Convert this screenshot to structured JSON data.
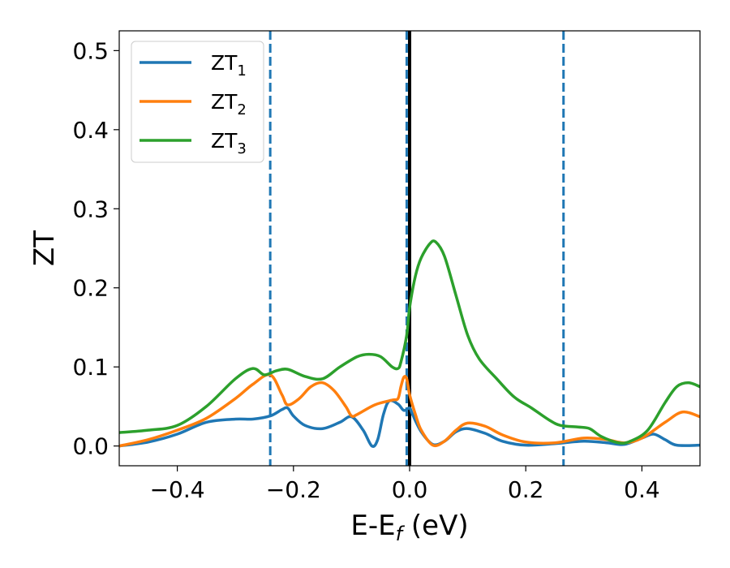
{
  "chart_data": {
    "type": "line",
    "xlabel": "E-E",
    "xlabel_sub": "f",
    "xlabel_unit": " (eV)",
    "ylabel": "ZT",
    "xlim": [
      -0.5,
      0.5
    ],
    "ylim": [
      -0.025,
      0.525
    ],
    "x_ticks": [
      -0.4,
      -0.2,
      0.0,
      0.2,
      0.4
    ],
    "x_tick_labels": [
      "−0.4",
      "−0.2",
      "0.0",
      "0.2",
      "0.4"
    ],
    "y_ticks": [
      0.0,
      0.1,
      0.2,
      0.3,
      0.4,
      0.5
    ],
    "y_tick_labels": [
      "0.0",
      "0.1",
      "0.2",
      "0.3",
      "0.4",
      "0.5"
    ],
    "grid": false,
    "legend_position": "top-left",
    "vertical_lines": [
      {
        "x": -0.24,
        "style": "dashed",
        "color": "#1f77b4"
      },
      {
        "x": -0.005,
        "style": "dashed",
        "color": "#1f77b4"
      },
      {
        "x": 0.265,
        "style": "dashed",
        "color": "#1f77b4"
      },
      {
        "x": 0.0,
        "style": "solid",
        "color": "#000000"
      }
    ],
    "series": [
      {
        "name": "ZT",
        "sub": "1",
        "color": "#1f77b4",
        "points": [
          [
            -0.5,
            0.0
          ],
          [
            -0.45,
            0.005
          ],
          [
            -0.4,
            0.015
          ],
          [
            -0.35,
            0.03
          ],
          [
            -0.3,
            0.034
          ],
          [
            -0.27,
            0.034
          ],
          [
            -0.24,
            0.038
          ],
          [
            -0.22,
            0.046
          ],
          [
            -0.21,
            0.048
          ],
          [
            -0.2,
            0.038
          ],
          [
            -0.18,
            0.026
          ],
          [
            -0.15,
            0.022
          ],
          [
            -0.12,
            0.03
          ],
          [
            -0.1,
            0.037
          ],
          [
            -0.08,
            0.02
          ],
          [
            -0.065,
            0.0
          ],
          [
            -0.055,
            0.008
          ],
          [
            -0.045,
            0.04
          ],
          [
            -0.035,
            0.057
          ],
          [
            -0.02,
            0.053
          ],
          [
            -0.01,
            0.045
          ],
          [
            0.0,
            0.048
          ],
          [
            0.005,
            0.04
          ],
          [
            0.02,
            0.018
          ],
          [
            0.04,
            0.002
          ],
          [
            0.06,
            0.006
          ],
          [
            0.08,
            0.018
          ],
          [
            0.1,
            0.022
          ],
          [
            0.13,
            0.016
          ],
          [
            0.16,
            0.006
          ],
          [
            0.2,
            0.001
          ],
          [
            0.25,
            0.003
          ],
          [
            0.3,
            0.006
          ],
          [
            0.34,
            0.004
          ],
          [
            0.37,
            0.002
          ],
          [
            0.4,
            0.01
          ],
          [
            0.42,
            0.015
          ],
          [
            0.44,
            0.008
          ],
          [
            0.46,
            0.001
          ],
          [
            0.5,
            0.001
          ]
        ]
      },
      {
        "name": "ZT",
        "sub": "2",
        "color": "#ff7f0e",
        "points": [
          [
            -0.5,
            0.0
          ],
          [
            -0.45,
            0.008
          ],
          [
            -0.4,
            0.02
          ],
          [
            -0.35,
            0.035
          ],
          [
            -0.3,
            0.06
          ],
          [
            -0.27,
            0.078
          ],
          [
            -0.24,
            0.09
          ],
          [
            -0.22,
            0.065
          ],
          [
            -0.21,
            0.052
          ],
          [
            -0.19,
            0.06
          ],
          [
            -0.17,
            0.075
          ],
          [
            -0.15,
            0.08
          ],
          [
            -0.13,
            0.07
          ],
          [
            -0.11,
            0.05
          ],
          [
            -0.1,
            0.038
          ],
          [
            -0.09,
            0.04
          ],
          [
            -0.06,
            0.052
          ],
          [
            -0.03,
            0.058
          ],
          [
            -0.02,
            0.06
          ],
          [
            -0.015,
            0.075
          ],
          [
            -0.01,
            0.087
          ],
          [
            -0.005,
            0.085
          ],
          [
            0.0,
            0.065
          ],
          [
            0.01,
            0.04
          ],
          [
            0.02,
            0.02
          ],
          [
            0.04,
            0.001
          ],
          [
            0.06,
            0.006
          ],
          [
            0.08,
            0.02
          ],
          [
            0.1,
            0.029
          ],
          [
            0.13,
            0.025
          ],
          [
            0.16,
            0.014
          ],
          [
            0.2,
            0.005
          ],
          [
            0.25,
            0.004
          ],
          [
            0.3,
            0.01
          ],
          [
            0.34,
            0.008
          ],
          [
            0.37,
            0.004
          ],
          [
            0.4,
            0.01
          ],
          [
            0.44,
            0.03
          ],
          [
            0.47,
            0.043
          ],
          [
            0.5,
            0.037
          ]
        ]
      },
      {
        "name": "ZT",
        "sub": "3",
        "color": "#2ca02c",
        "points": [
          [
            -0.5,
            0.017
          ],
          [
            -0.45,
            0.02
          ],
          [
            -0.4,
            0.026
          ],
          [
            -0.35,
            0.05
          ],
          [
            -0.3,
            0.085
          ],
          [
            -0.27,
            0.098
          ],
          [
            -0.25,
            0.09
          ],
          [
            -0.23,
            0.095
          ],
          [
            -0.21,
            0.097
          ],
          [
            -0.18,
            0.088
          ],
          [
            -0.15,
            0.085
          ],
          [
            -0.12,
            0.1
          ],
          [
            -0.09,
            0.113
          ],
          [
            -0.07,
            0.116
          ],
          [
            -0.05,
            0.113
          ],
          [
            -0.03,
            0.1
          ],
          [
            -0.02,
            0.098
          ],
          [
            -0.015,
            0.106
          ],
          [
            -0.005,
            0.14
          ],
          [
            0.0,
            0.175
          ],
          [
            0.01,
            0.215
          ],
          [
            0.02,
            0.238
          ],
          [
            0.035,
            0.256
          ],
          [
            0.045,
            0.258
          ],
          [
            0.06,
            0.24
          ],
          [
            0.08,
            0.19
          ],
          [
            0.1,
            0.14
          ],
          [
            0.12,
            0.11
          ],
          [
            0.15,
            0.085
          ],
          [
            0.18,
            0.062
          ],
          [
            0.21,
            0.048
          ],
          [
            0.24,
            0.033
          ],
          [
            0.26,
            0.026
          ],
          [
            0.29,
            0.024
          ],
          [
            0.31,
            0.022
          ],
          [
            0.33,
            0.012
          ],
          [
            0.36,
            0.004
          ],
          [
            0.38,
            0.006
          ],
          [
            0.41,
            0.02
          ],
          [
            0.44,
            0.055
          ],
          [
            0.46,
            0.075
          ],
          [
            0.48,
            0.08
          ],
          [
            0.5,
            0.075
          ]
        ]
      }
    ]
  }
}
